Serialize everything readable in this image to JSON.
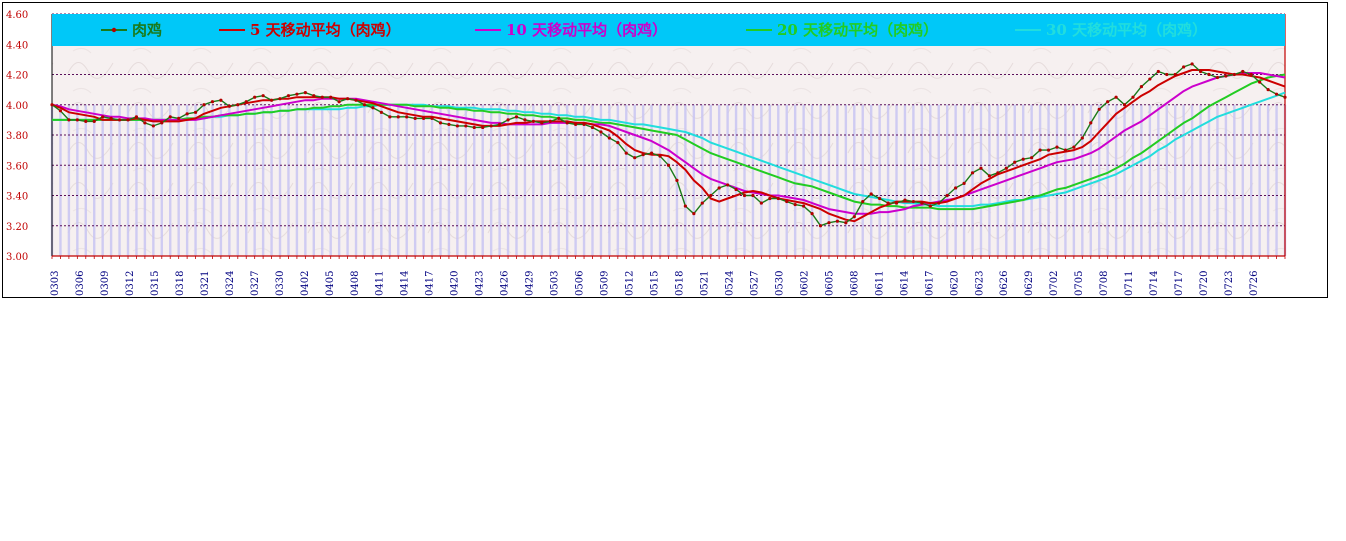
{
  "chart_data": {
    "type": "line",
    "ylim": [
      3.0,
      4.6
    ],
    "yticks": [
      "3.00",
      "3.20",
      "3.40",
      "3.60",
      "3.80",
      "4.00",
      "4.20",
      "4.40",
      "4.60"
    ],
    "x_labels": [
      "0303",
      "0306",
      "0309",
      "0312",
      "0315",
      "0318",
      "0321",
      "0324",
      "0327",
      "0330",
      "0402",
      "0405",
      "0408",
      "0411",
      "0414",
      "0417",
      "0420",
      "0423",
      "0426",
      "0429",
      "0503",
      "0506",
      "0509",
      "0512",
      "0515",
      "0518",
      "0521",
      "0524",
      "0527",
      "0530",
      "0602",
      "0605",
      "0608",
      "0611",
      "0614",
      "0617",
      "0620",
      "0623",
      "0626",
      "0629",
      "0702",
      "0705",
      "0708",
      "0711",
      "0714",
      "0717",
      "0720",
      "0723",
      "0726"
    ],
    "grid": "horizontal dashed",
    "legend_position": "top",
    "series": [
      {
        "name": "肉鸡",
        "color": "#1a7a1a",
        "marker": "dot",
        "values": [
          4.0,
          3.96,
          3.9,
          3.9,
          3.89,
          3.89,
          3.92,
          3.91,
          3.9,
          3.9,
          3.92,
          3.88,
          3.86,
          3.88,
          3.92,
          3.91,
          3.94,
          3.95,
          4.0,
          4.02,
          4.03,
          3.99,
          4.0,
          4.02,
          4.05,
          4.06,
          4.03,
          4.04,
          4.06,
          4.07,
          4.08,
          4.06,
          4.05,
          4.05,
          4.02,
          4.04,
          4.03,
          4.0,
          3.98,
          3.95,
          3.92,
          3.92,
          3.92,
          3.91,
          3.91,
          3.91,
          3.88,
          3.87,
          3.86,
          3.86,
          3.85,
          3.85,
          3.86,
          3.87,
          3.9,
          3.92,
          3.9,
          3.89,
          3.88,
          3.89,
          3.91,
          3.88,
          3.87,
          3.87,
          3.85,
          3.82,
          3.78,
          3.75,
          3.68,
          3.65,
          3.67,
          3.68,
          3.66,
          3.6,
          3.5,
          3.33,
          3.28,
          3.35,
          3.4,
          3.45,
          3.47,
          3.44,
          3.4,
          3.4,
          3.35,
          3.38,
          3.38,
          3.36,
          3.34,
          3.33,
          3.28,
          3.2,
          3.22,
          3.23,
          3.22,
          3.26,
          3.36,
          3.41,
          3.38,
          3.35,
          3.35,
          3.37,
          3.36,
          3.35,
          3.33,
          3.35,
          3.4,
          3.45,
          3.48,
          3.55,
          3.58,
          3.53,
          3.55,
          3.58,
          3.62,
          3.64,
          3.65,
          3.7,
          3.7,
          3.72,
          3.7,
          3.72,
          3.78,
          3.88,
          3.97,
          4.02,
          4.05,
          4.0,
          4.05,
          4.12,
          4.17,
          4.22,
          4.2,
          4.2,
          4.25,
          4.27,
          4.22,
          4.2,
          4.18,
          4.19,
          4.2,
          4.22,
          4.2,
          4.15,
          4.1,
          4.07,
          4.05
        ]
      },
      {
        "name": "5 天移动平均（肉鸡）",
        "color": "#cc0000",
        "values": [
          4.0,
          3.98,
          3.95,
          3.94,
          3.93,
          3.92,
          3.9,
          3.9,
          3.9,
          3.9,
          3.91,
          3.9,
          3.89,
          3.89,
          3.89,
          3.89,
          3.9,
          3.91,
          3.94,
          3.96,
          3.98,
          3.99,
          4.0,
          4.01,
          4.02,
          4.03,
          4.03,
          4.04,
          4.04,
          4.05,
          4.05,
          4.05,
          4.05,
          4.05,
          4.04,
          4.04,
          4.03,
          4.02,
          4.01,
          3.99,
          3.97,
          3.95,
          3.94,
          3.93,
          3.92,
          3.92,
          3.91,
          3.9,
          3.89,
          3.88,
          3.87,
          3.86,
          3.86,
          3.86,
          3.87,
          3.88,
          3.88,
          3.89,
          3.89,
          3.89,
          3.89,
          3.89,
          3.88,
          3.88,
          3.87,
          3.85,
          3.83,
          3.79,
          3.74,
          3.7,
          3.68,
          3.67,
          3.67,
          3.66,
          3.62,
          3.57,
          3.5,
          3.45,
          3.38,
          3.36,
          3.38,
          3.4,
          3.42,
          3.43,
          3.42,
          3.4,
          3.38,
          3.37,
          3.36,
          3.35,
          3.33,
          3.31,
          3.28,
          3.26,
          3.24,
          3.23,
          3.26,
          3.29,
          3.32,
          3.34,
          3.36,
          3.36,
          3.36,
          3.36,
          3.35,
          3.35,
          3.36,
          3.38,
          3.4,
          3.44,
          3.48,
          3.51,
          3.54,
          3.56,
          3.58,
          3.6,
          3.62,
          3.64,
          3.67,
          3.68,
          3.69,
          3.7,
          3.72,
          3.76,
          3.82,
          3.88,
          3.94,
          3.98,
          4.02,
          4.06,
          4.09,
          4.13,
          4.16,
          4.19,
          4.21,
          4.23,
          4.23,
          4.23,
          4.22,
          4.21,
          4.2,
          4.2,
          4.19,
          4.18,
          4.16,
          4.14,
          4.12
        ]
      },
      {
        "name": "10 天移动平均（肉鸡）",
        "color": "#cc00cc",
        "values": [
          4.0,
          3.99,
          3.97,
          3.96,
          3.95,
          3.94,
          3.93,
          3.92,
          3.92,
          3.91,
          3.91,
          3.91,
          3.9,
          3.9,
          3.9,
          3.9,
          3.9,
          3.9,
          3.91,
          3.92,
          3.93,
          3.94,
          3.95,
          3.96,
          3.97,
          3.98,
          3.99,
          4.0,
          4.01,
          4.02,
          4.03,
          4.03,
          4.04,
          4.04,
          4.04,
          4.04,
          4.04,
          4.03,
          4.02,
          4.01,
          4.0,
          3.99,
          3.98,
          3.97,
          3.96,
          3.95,
          3.94,
          3.93,
          3.92,
          3.91,
          3.9,
          3.89,
          3.88,
          3.88,
          3.87,
          3.87,
          3.87,
          3.87,
          3.87,
          3.88,
          3.88,
          3.88,
          3.88,
          3.88,
          3.87,
          3.87,
          3.86,
          3.84,
          3.82,
          3.8,
          3.78,
          3.76,
          3.73,
          3.7,
          3.66,
          3.62,
          3.58,
          3.54,
          3.51,
          3.49,
          3.47,
          3.45,
          3.43,
          3.42,
          3.41,
          3.4,
          3.4,
          3.39,
          3.38,
          3.37,
          3.35,
          3.33,
          3.31,
          3.3,
          3.29,
          3.28,
          3.28,
          3.28,
          3.29,
          3.29,
          3.3,
          3.31,
          3.33,
          3.34,
          3.35,
          3.36,
          3.37,
          3.38,
          3.4,
          3.42,
          3.44,
          3.46,
          3.48,
          3.5,
          3.52,
          3.54,
          3.56,
          3.58,
          3.6,
          3.62,
          3.63,
          3.64,
          3.66,
          3.68,
          3.71,
          3.75,
          3.79,
          3.83,
          3.86,
          3.89,
          3.93,
          3.97,
          4.01,
          4.05,
          4.09,
          4.12,
          4.14,
          4.16,
          4.18,
          4.19,
          4.2,
          4.21,
          4.21,
          4.21,
          4.2,
          4.19,
          4.18
        ]
      },
      {
        "name": "20 天移动平均（肉鸡）",
        "color": "#22cc22",
        "values": [
          3.9,
          3.9,
          3.9,
          3.9,
          3.9,
          3.9,
          3.9,
          3.9,
          3.9,
          3.9,
          3.9,
          3.9,
          3.9,
          3.9,
          3.9,
          3.9,
          3.91,
          3.91,
          3.92,
          3.92,
          3.93,
          3.93,
          3.93,
          3.94,
          3.94,
          3.95,
          3.95,
          3.96,
          3.96,
          3.97,
          3.97,
          3.98,
          3.98,
          3.99,
          3.99,
          4.0,
          4.0,
          4.0,
          4.0,
          4.0,
          4.0,
          4.0,
          4.0,
          3.99,
          3.99,
          3.99,
          3.98,
          3.98,
          3.97,
          3.97,
          3.96,
          3.96,
          3.95,
          3.95,
          3.94,
          3.94,
          3.93,
          3.93,
          3.92,
          3.92,
          3.91,
          3.91,
          3.9,
          3.9,
          3.89,
          3.88,
          3.88,
          3.87,
          3.86,
          3.85,
          3.84,
          3.83,
          3.82,
          3.81,
          3.8,
          3.77,
          3.74,
          3.71,
          3.68,
          3.66,
          3.64,
          3.62,
          3.6,
          3.58,
          3.56,
          3.54,
          3.52,
          3.5,
          3.48,
          3.47,
          3.46,
          3.44,
          3.42,
          3.4,
          3.38,
          3.36,
          3.35,
          3.34,
          3.34,
          3.33,
          3.33,
          3.32,
          3.32,
          3.32,
          3.32,
          3.31,
          3.31,
          3.31,
          3.31,
          3.31,
          3.32,
          3.33,
          3.34,
          3.35,
          3.36,
          3.37,
          3.39,
          3.4,
          3.42,
          3.44,
          3.45,
          3.47,
          3.49,
          3.51,
          3.53,
          3.55,
          3.58,
          3.61,
          3.65,
          3.68,
          3.72,
          3.76,
          3.8,
          3.84,
          3.88,
          3.91,
          3.95,
          3.99,
          4.02,
          4.05,
          4.08,
          4.11,
          4.14,
          4.16,
          4.18,
          4.19,
          4.2
        ]
      },
      {
        "name": "30 天移动平均（肉鸡）",
        "color": "#22dddd",
        "values": [
          3.9,
          3.9,
          3.9,
          3.9,
          3.9,
          3.9,
          3.9,
          3.9,
          3.9,
          3.9,
          3.9,
          3.9,
          3.9,
          3.9,
          3.9,
          3.9,
          3.91,
          3.91,
          3.91,
          3.92,
          3.92,
          3.93,
          3.93,
          3.94,
          3.94,
          3.95,
          3.95,
          3.96,
          3.96,
          3.97,
          3.97,
          3.97,
          3.97,
          3.97,
          3.97,
          3.98,
          3.98,
          3.99,
          3.99,
          4.0,
          4.0,
          4.0,
          4.0,
          4.0,
          4.0,
          3.99,
          3.99,
          3.99,
          3.98,
          3.98,
          3.98,
          3.97,
          3.97,
          3.97,
          3.96,
          3.96,
          3.95,
          3.95,
          3.94,
          3.94,
          3.93,
          3.93,
          3.92,
          3.92,
          3.91,
          3.9,
          3.9,
          3.89,
          3.88,
          3.87,
          3.87,
          3.86,
          3.85,
          3.84,
          3.83,
          3.82,
          3.8,
          3.78,
          3.75,
          3.73,
          3.71,
          3.69,
          3.67,
          3.65,
          3.63,
          3.61,
          3.59,
          3.57,
          3.55,
          3.53,
          3.51,
          3.49,
          3.47,
          3.45,
          3.43,
          3.41,
          3.4,
          3.39,
          3.38,
          3.37,
          3.36,
          3.35,
          3.35,
          3.34,
          3.34,
          3.33,
          3.33,
          3.33,
          3.33,
          3.33,
          3.34,
          3.34,
          3.35,
          3.36,
          3.37,
          3.37,
          3.38,
          3.39,
          3.4,
          3.41,
          3.42,
          3.44,
          3.46,
          3.48,
          3.5,
          3.52,
          3.54,
          3.57,
          3.6,
          3.63,
          3.66,
          3.7,
          3.73,
          3.77,
          3.8,
          3.83,
          3.86,
          3.89,
          3.92,
          3.94,
          3.96,
          3.98,
          4.0,
          4.02,
          4.04,
          4.06,
          4.08
        ]
      }
    ]
  }
}
